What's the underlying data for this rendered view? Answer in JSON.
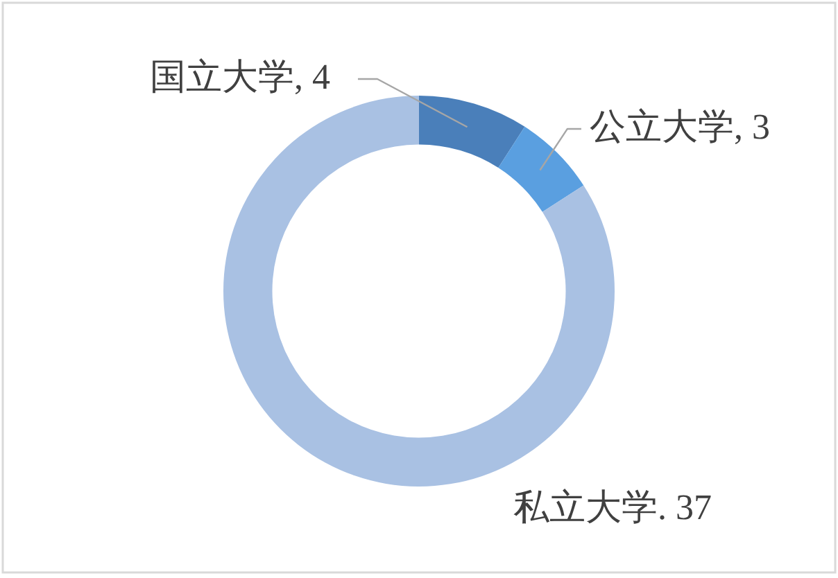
{
  "chart_data": {
    "type": "donut",
    "categories": [
      "国立大学",
      "公立大学",
      "私立大学"
    ],
    "values": [
      4,
      3,
      37
    ],
    "colors": [
      "#4a7fba",
      "#5a9fe0",
      "#a9c1e3"
    ],
    "value_labels": [
      ", 4",
      ", 3",
      ". 37"
    ]
  }
}
